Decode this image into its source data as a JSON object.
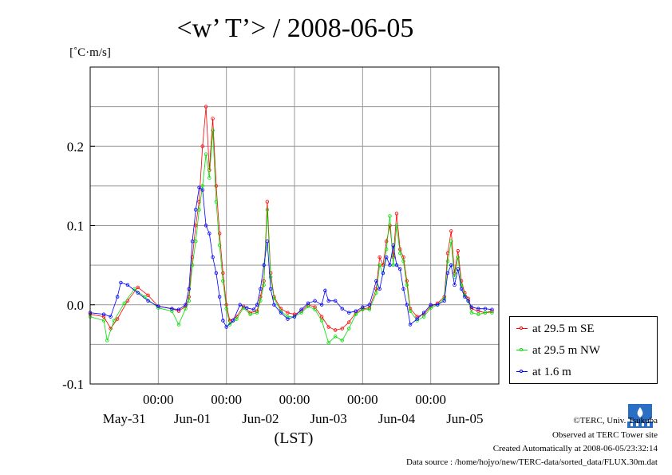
{
  "chart_data": {
    "type": "line",
    "title": "<w’ T’> / 2008-06-05",
    "ylabel": "[˚C·m/s]",
    "xlabel": "(LST)",
    "ylim": [
      -0.1,
      0.3
    ],
    "y_ticks": [
      "-0.1",
      "0.0",
      "0.1",
      "0.2"
    ],
    "x_time_labels": [
      "00:00",
      "00:00",
      "00:00",
      "00:00",
      "00:00"
    ],
    "x_day_labels": [
      "May-31",
      "Jun-01",
      "Jun-02",
      "Jun-03",
      "Jun-04",
      "Jun-05"
    ],
    "x_range_days": [
      0,
      6
    ],
    "grid": true,
    "legend_placement": "right",
    "series": [
      {
        "name": "at 29.5 m SE",
        "color": "#ff0000",
        "points": [
          [
            0.0,
            -0.012
          ],
          [
            0.2,
            -0.015
          ],
          [
            0.3,
            -0.03
          ],
          [
            0.4,
            -0.018
          ],
          [
            0.55,
            0.005
          ],
          [
            0.7,
            0.022
          ],
          [
            0.85,
            0.012
          ],
          [
            1.0,
            -0.002
          ],
          [
            1.2,
            -0.005
          ],
          [
            1.3,
            -0.008
          ],
          [
            1.4,
            -0.002
          ],
          [
            1.45,
            0.01
          ],
          [
            1.5,
            0.06
          ],
          [
            1.55,
            0.1
          ],
          [
            1.6,
            0.13
          ],
          [
            1.65,
            0.2
          ],
          [
            1.7,
            0.25
          ],
          [
            1.75,
            0.17
          ],
          [
            1.8,
            0.235
          ],
          [
            1.85,
            0.15
          ],
          [
            1.9,
            0.09
          ],
          [
            1.95,
            0.04
          ],
          [
            2.0,
            0.0
          ],
          [
            2.05,
            -0.02
          ],
          [
            2.15,
            -0.015
          ],
          [
            2.25,
            -0.002
          ],
          [
            2.35,
            -0.01
          ],
          [
            2.45,
            -0.008
          ],
          [
            2.5,
            0.01
          ],
          [
            2.55,
            0.03
          ],
          [
            2.6,
            0.13
          ],
          [
            2.65,
            0.04
          ],
          [
            2.7,
            0.01
          ],
          [
            2.8,
            -0.005
          ],
          [
            2.9,
            -0.01
          ],
          [
            3.0,
            -0.012
          ],
          [
            3.1,
            -0.008
          ],
          [
            3.2,
            0.0
          ],
          [
            3.3,
            -0.003
          ],
          [
            3.4,
            -0.015
          ],
          [
            3.5,
            -0.028
          ],
          [
            3.6,
            -0.032
          ],
          [
            3.7,
            -0.03
          ],
          [
            3.8,
            -0.022
          ],
          [
            3.9,
            -0.01
          ],
          [
            4.0,
            -0.005
          ],
          [
            4.1,
            -0.004
          ],
          [
            4.2,
            0.02
          ],
          [
            4.25,
            0.06
          ],
          [
            4.3,
            0.05
          ],
          [
            4.35,
            0.08
          ],
          [
            4.4,
            0.1
          ],
          [
            4.45,
            0.06
          ],
          [
            4.5,
            0.115
          ],
          [
            4.55,
            0.07
          ],
          [
            4.6,
            0.06
          ],
          [
            4.65,
            0.03
          ],
          [
            4.7,
            -0.005
          ],
          [
            4.8,
            -0.015
          ],
          [
            4.9,
            -0.012
          ],
          [
            5.0,
            -0.002
          ],
          [
            5.1,
            0.002
          ],
          [
            5.2,
            0.01
          ],
          [
            5.25,
            0.065
          ],
          [
            5.3,
            0.093
          ],
          [
            5.35,
            0.04
          ],
          [
            5.4,
            0.068
          ],
          [
            5.45,
            0.03
          ],
          [
            5.5,
            0.015
          ],
          [
            5.55,
            0.008
          ],
          [
            5.6,
            -0.005
          ],
          [
            5.7,
            -0.008
          ],
          [
            5.8,
            -0.01
          ],
          [
            5.9,
            -0.008
          ]
        ]
      },
      {
        "name": "at 29.5 m NW",
        "color": "#00dd00",
        "points": [
          [
            0.0,
            -0.015
          ],
          [
            0.2,
            -0.02
          ],
          [
            0.25,
            -0.045
          ],
          [
            0.35,
            -0.02
          ],
          [
            0.5,
            0.002
          ],
          [
            0.65,
            0.02
          ],
          [
            0.8,
            0.01
          ],
          [
            1.0,
            -0.004
          ],
          [
            1.2,
            -0.008
          ],
          [
            1.3,
            -0.025
          ],
          [
            1.4,
            -0.005
          ],
          [
            1.45,
            0.005
          ],
          [
            1.5,
            0.05
          ],
          [
            1.55,
            0.08
          ],
          [
            1.6,
            0.12
          ],
          [
            1.65,
            0.15
          ],
          [
            1.7,
            0.19
          ],
          [
            1.75,
            0.16
          ],
          [
            1.8,
            0.22
          ],
          [
            1.85,
            0.13
          ],
          [
            1.9,
            0.075
          ],
          [
            1.95,
            0.03
          ],
          [
            2.0,
            -0.005
          ],
          [
            2.05,
            -0.025
          ],
          [
            2.15,
            -0.018
          ],
          [
            2.25,
            -0.004
          ],
          [
            2.35,
            -0.012
          ],
          [
            2.45,
            -0.01
          ],
          [
            2.5,
            0.005
          ],
          [
            2.55,
            0.025
          ],
          [
            2.6,
            0.12
          ],
          [
            2.65,
            0.035
          ],
          [
            2.7,
            0.008
          ],
          [
            2.8,
            -0.008
          ],
          [
            2.9,
            -0.015
          ],
          [
            3.0,
            -0.015
          ],
          [
            3.1,
            -0.01
          ],
          [
            3.2,
            -0.002
          ],
          [
            3.3,
            -0.006
          ],
          [
            3.4,
            -0.02
          ],
          [
            3.5,
            -0.048
          ],
          [
            3.6,
            -0.04
          ],
          [
            3.7,
            -0.045
          ],
          [
            3.8,
            -0.03
          ],
          [
            3.9,
            -0.012
          ],
          [
            4.0,
            -0.006
          ],
          [
            4.1,
            -0.006
          ],
          [
            4.2,
            0.015
          ],
          [
            4.25,
            0.05
          ],
          [
            4.3,
            0.04
          ],
          [
            4.35,
            0.07
          ],
          [
            4.4,
            0.112
          ],
          [
            4.45,
            0.05
          ],
          [
            4.5,
            0.1
          ],
          [
            4.55,
            0.065
          ],
          [
            4.6,
            0.055
          ],
          [
            4.65,
            0.025
          ],
          [
            4.7,
            -0.008
          ],
          [
            4.8,
            -0.02
          ],
          [
            4.9,
            -0.015
          ],
          [
            5.0,
            -0.004
          ],
          [
            5.1,
            0.0
          ],
          [
            5.2,
            0.008
          ],
          [
            5.25,
            0.055
          ],
          [
            5.3,
            0.08
          ],
          [
            5.35,
            0.035
          ],
          [
            5.4,
            0.06
          ],
          [
            5.45,
            0.025
          ],
          [
            5.5,
            0.012
          ],
          [
            5.55,
            0.005
          ],
          [
            5.6,
            -0.01
          ],
          [
            5.7,
            -0.012
          ],
          [
            5.8,
            -0.01
          ],
          [
            5.9,
            -0.01
          ]
        ]
      },
      {
        "name": "at 1.6 m",
        "color": "#0000ff",
        "points": [
          [
            0.0,
            -0.01
          ],
          [
            0.2,
            -0.012
          ],
          [
            0.3,
            -0.015
          ],
          [
            0.4,
            0.01
          ],
          [
            0.45,
            0.028
          ],
          [
            0.55,
            0.025
          ],
          [
            0.7,
            0.015
          ],
          [
            0.85,
            0.005
          ],
          [
            1.0,
            -0.002
          ],
          [
            1.2,
            -0.005
          ],
          [
            1.3,
            -0.006
          ],
          [
            1.4,
            0.0
          ],
          [
            1.45,
            0.02
          ],
          [
            1.5,
            0.08
          ],
          [
            1.55,
            0.12
          ],
          [
            1.6,
            0.148
          ],
          [
            1.65,
            0.145
          ],
          [
            1.7,
            0.1
          ],
          [
            1.75,
            0.09
          ],
          [
            1.8,
            0.06
          ],
          [
            1.85,
            0.04
          ],
          [
            1.9,
            0.01
          ],
          [
            1.95,
            -0.02
          ],
          [
            2.0,
            -0.028
          ],
          [
            2.1,
            -0.02
          ],
          [
            2.2,
            0.0
          ],
          [
            2.3,
            -0.004
          ],
          [
            2.4,
            -0.006
          ],
          [
            2.45,
            0.0
          ],
          [
            2.5,
            0.02
          ],
          [
            2.55,
            0.05
          ],
          [
            2.6,
            0.08
          ],
          [
            2.65,
            0.02
          ],
          [
            2.7,
            0.0
          ],
          [
            2.8,
            -0.01
          ],
          [
            2.9,
            -0.018
          ],
          [
            3.0,
            -0.015
          ],
          [
            3.1,
            -0.006
          ],
          [
            3.2,
            0.002
          ],
          [
            3.3,
            0.005
          ],
          [
            3.4,
            0.0
          ],
          [
            3.45,
            0.018
          ],
          [
            3.5,
            0.005
          ],
          [
            3.6,
            0.005
          ],
          [
            3.7,
            -0.005
          ],
          [
            3.8,
            -0.01
          ],
          [
            3.9,
            -0.008
          ],
          [
            4.0,
            -0.003
          ],
          [
            4.1,
            0.0
          ],
          [
            4.2,
            0.03
          ],
          [
            4.25,
            0.02
          ],
          [
            4.3,
            0.04
          ],
          [
            4.35,
            0.06
          ],
          [
            4.4,
            0.05
          ],
          [
            4.45,
            0.075
          ],
          [
            4.5,
            0.05
          ],
          [
            4.55,
            0.045
          ],
          [
            4.6,
            0.02
          ],
          [
            4.65,
            0.0
          ],
          [
            4.7,
            -0.025
          ],
          [
            4.8,
            -0.018
          ],
          [
            4.9,
            -0.01
          ],
          [
            5.0,
            0.0
          ],
          [
            5.1,
            0.0
          ],
          [
            5.2,
            0.005
          ],
          [
            5.25,
            0.04
          ],
          [
            5.3,
            0.05
          ],
          [
            5.35,
            0.025
          ],
          [
            5.4,
            0.045
          ],
          [
            5.45,
            0.02
          ],
          [
            5.5,
            0.01
          ],
          [
            5.55,
            0.005
          ],
          [
            5.6,
            -0.003
          ],
          [
            5.7,
            -0.005
          ],
          [
            5.8,
            -0.005
          ],
          [
            5.9,
            -0.006
          ]
        ]
      }
    ]
  },
  "footer": {
    "copyright": "©TERC, Univ. Tsukuba",
    "observed": "Observed at TERC Tower site",
    "created": "Created Automatically at 2008-06-05/23:32:14",
    "source": "Data source : /home/hojyo/new/TERC-data/sorted_data/FLUX.30m.dat"
  }
}
